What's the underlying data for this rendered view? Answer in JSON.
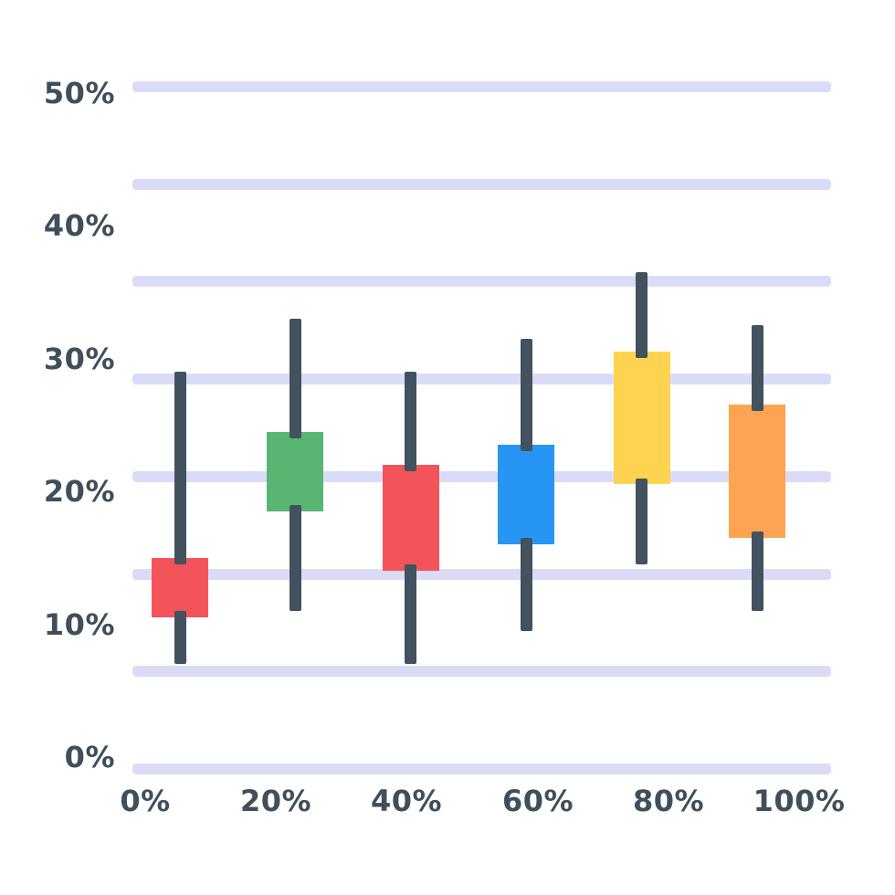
{
  "chart_data": {
    "type": "candlestick",
    "title": "",
    "xlabel": "",
    "ylabel": "",
    "x_tick_labels": [
      "0%",
      "20%",
      "40%",
      "60%",
      "80%",
      "100%"
    ],
    "y_tick_labels": [
      "50%",
      "40%",
      "30%",
      "20%",
      "10%",
      "0%"
    ],
    "ylim": [
      0,
      50
    ],
    "grid": true,
    "gridline_count": 8,
    "legend": "none",
    "series": [
      {
        "x": "0%",
        "color": "red",
        "high": 29,
        "low": 7,
        "body_top": 15,
        "body_bottom": 10.5
      },
      {
        "x": "20%",
        "color": "green",
        "high": 33,
        "low": 11,
        "body_top": 24.5,
        "body_bottom": 18.5
      },
      {
        "x": "40%",
        "color": "red",
        "high": 29,
        "low": 7,
        "body_top": 22,
        "body_bottom": 14
      },
      {
        "x": "60%",
        "color": "blue",
        "high": 31.5,
        "low": 9.5,
        "body_top": 23.5,
        "body_bottom": 16
      },
      {
        "x": "80%",
        "color": "yellow",
        "high": 36.5,
        "low": 14.5,
        "body_top": 30.5,
        "body_bottom": 20.5
      },
      {
        "x": "100%",
        "color": "orange",
        "high": 32.5,
        "low": 11,
        "body_top": 26.5,
        "body_bottom": 16.5
      }
    ],
    "palette": {
      "red": "#f25459",
      "green": "#58b572",
      "blue": "#2795f3",
      "yellow": "#fed34f",
      "orange": "#fca452"
    },
    "wick_color": "#42525e",
    "gridline_color": "#dadcf7",
    "label_color": "#3f4f5b",
    "background_color": "#ffffff"
  }
}
